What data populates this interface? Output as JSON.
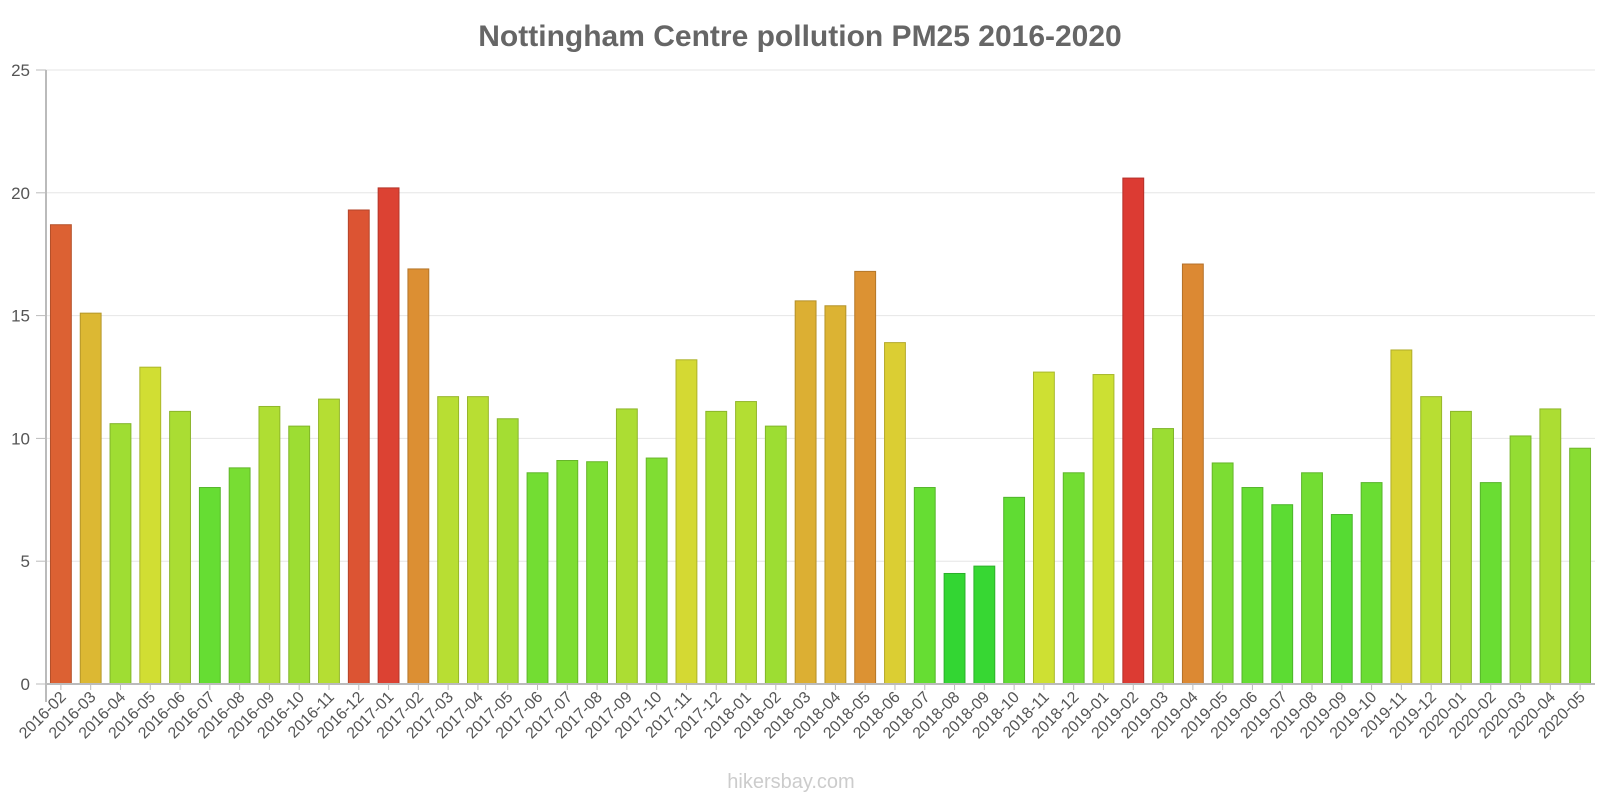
{
  "chart_data": {
    "type": "bar",
    "title": "Nottingham Centre pollution PM25 2016-2020",
    "xlabel": "",
    "ylabel": "",
    "ylim": [
      0,
      25
    ],
    "yticks": [
      0,
      5,
      10,
      15,
      20,
      25
    ],
    "grid": true,
    "legend": "none",
    "categories": [
      "2016-02",
      "2016-03",
      "2016-04",
      "2016-05",
      "2016-06",
      "2016-07",
      "2016-08",
      "2016-09",
      "2016-10",
      "2016-11",
      "2016-12",
      "2017-01",
      "2017-02",
      "2017-03",
      "2017-04",
      "2017-05",
      "2017-06",
      "2017-07",
      "2017-08",
      "2017-09",
      "2017-10",
      "2017-11",
      "2017-12",
      "2018-01",
      "2018-02",
      "2018-03",
      "2018-04",
      "2018-05",
      "2018-06",
      "2018-07",
      "2018-08",
      "2018-09",
      "2018-10",
      "2018-11",
      "2018-12",
      "2019-01",
      "2019-02",
      "2019-03",
      "2019-04",
      "2019-05",
      "2019-06",
      "2019-07",
      "2019-08",
      "2019-09",
      "2019-10",
      "2019-11",
      "2019-12",
      "2020-01",
      "2020-02",
      "2020-03",
      "2020-04",
      "2020-05"
    ],
    "values": [
      18.7,
      15.1,
      10.6,
      12.9,
      11.1,
      8.0,
      8.8,
      11.3,
      10.5,
      11.6,
      19.3,
      20.2,
      16.9,
      11.7,
      11.7,
      10.8,
      8.6,
      9.1,
      9.05,
      11.2,
      9.2,
      13.2,
      11.1,
      11.5,
      10.5,
      15.6,
      15.4,
      16.8,
      13.9,
      8.0,
      4.5,
      4.8,
      7.6,
      12.7,
      8.6,
      12.6,
      20.6,
      10.4,
      17.1,
      9.0,
      8.0,
      7.3,
      8.6,
      6.9,
      8.2,
      13.6,
      11.7,
      11.1,
      8.2,
      10.1,
      11.2,
      9.6
    ]
  },
  "watermark": "hikersbay.com",
  "colors": {
    "title": "#666666",
    "axis_text": "#555555",
    "grid": "#e6e6e6",
    "watermark": "#cccccc",
    "scale_low": "#33d633",
    "scale_mid": "#d0e033",
    "scale_high": "#dc3333"
  }
}
